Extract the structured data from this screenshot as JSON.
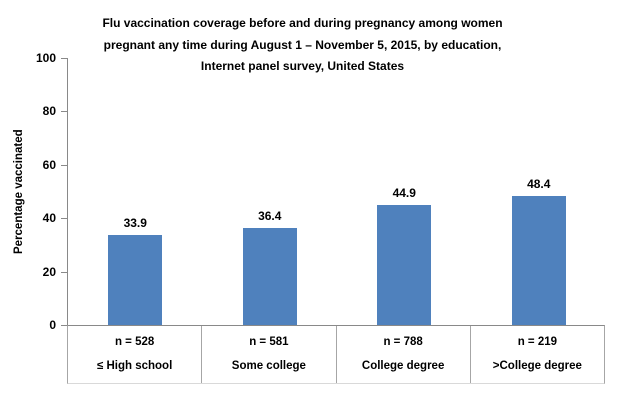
{
  "title_lines": [
    "Flu vaccination coverage before and during pregnancy among women",
    "pregnant any time during August 1 – November 5, 2015, by education,",
    "Internet panel survey, United States"
  ],
  "y_axis": {
    "label": "Percentage vaccinated"
  },
  "chart_data": {
    "type": "bar",
    "title": "Flu vaccination coverage before and during pregnancy among women pregnant any time during August 1 – November 5, 2015, by education, Internet panel survey, United States",
    "categories": [
      "≤ High school",
      "Some college",
      "College degree",
      ">College degree"
    ],
    "values": [
      33.9,
      36.4,
      44.9,
      48.4
    ],
    "value_labels": [
      "33.9",
      "36.4",
      "44.9",
      "48.4"
    ],
    "sample_size_labels": [
      "n = 528",
      "n = 581",
      "n = 788",
      "n = 219"
    ],
    "sample_sizes": [
      528,
      581,
      788,
      219
    ],
    "xlabel": "",
    "ylabel": "Percentage vaccinated",
    "ylim": [
      0,
      100
    ],
    "yticks": [
      0,
      20,
      40,
      60,
      80,
      100
    ],
    "grid": false,
    "legend": "none",
    "bar_color": "#4F81BD",
    "axis_color": "#898989",
    "table_border_color": "#a6a6a6"
  }
}
